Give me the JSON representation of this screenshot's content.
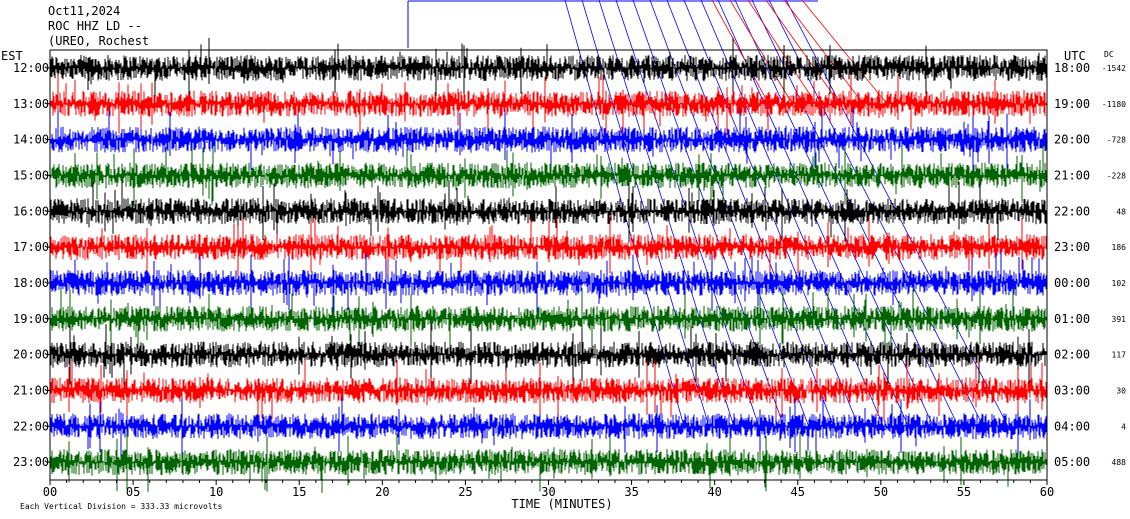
{
  "header": {
    "date": "Oct11,2024",
    "station": "ROC HHZ LD --",
    "location": "(UREO, Rochest"
  },
  "chart_data": {
    "type": "line",
    "title": "",
    "xlabel": "TIME (MINUTES)",
    "x_ticks": [
      "00",
      "05",
      "10",
      "15",
      "20",
      "25",
      "30",
      "35",
      "40",
      "45",
      "50",
      "55",
      "60"
    ],
    "xlim": [
      0,
      60
    ],
    "left_axis_title": "EST",
    "right_axis_title": "UTC",
    "dc_title": "DC",
    "footer_note": "Each Vertical Division =  333.33 microvolts",
    "trace_colors": [
      "#000000",
      "#ff0000",
      "#0000ff",
      "#006400"
    ],
    "rows": [
      {
        "est": "12:00",
        "utc": "18:00",
        "dc": "-1542"
      },
      {
        "est": "13:00",
        "utc": "19:00",
        "dc": "-1180"
      },
      {
        "est": "14:00",
        "utc": "20:00",
        "dc": "-728"
      },
      {
        "est": "15:00",
        "utc": "21:00",
        "dc": "-228"
      },
      {
        "est": "16:00",
        "utc": "22:00",
        "dc": "48"
      },
      {
        "est": "17:00",
        "utc": "23:00",
        "dc": "186"
      },
      {
        "est": "18:00",
        "utc": "00:00",
        "dc": "102"
      },
      {
        "est": "19:00",
        "utc": "01:00",
        "dc": "391"
      },
      {
        "est": "20:00",
        "utc": "02:00",
        "dc": "117"
      },
      {
        "est": "21:00",
        "utc": "03:00",
        "dc": "30"
      },
      {
        "est": "22:00",
        "utc": "04:00",
        "dc": "4"
      },
      {
        "est": "23:00",
        "utc": "05:00",
        "dc": "488"
      }
    ]
  }
}
